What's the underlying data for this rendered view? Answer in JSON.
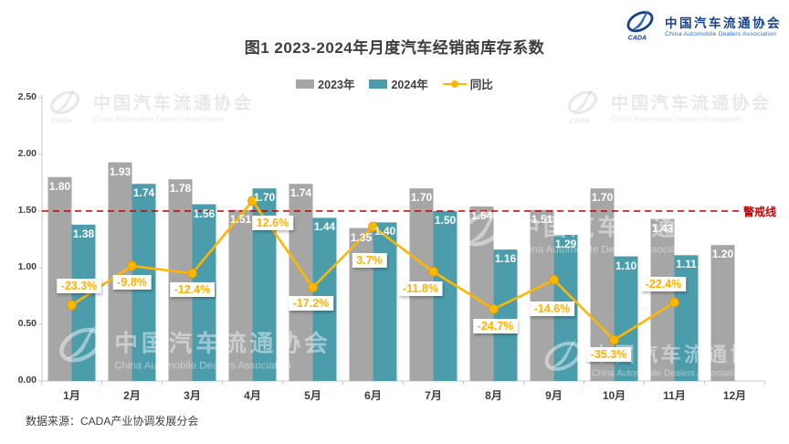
{
  "header": {
    "title": "图1  2023-2024年月度汽车经销商库存系数"
  },
  "brand": {
    "name_cn": "中国汽车流通协会",
    "name_en": "China Automobile Dealers Association",
    "logo_text": "CADA",
    "color_dark": "#16418C",
    "color_light": "#2F6BBF"
  },
  "legend": {
    "items": [
      {
        "label": "2023年",
        "type": "bar",
        "color": "#A6A6A6"
      },
      {
        "label": "2024年",
        "type": "bar",
        "color": "#4C9DAC"
      },
      {
        "label": "同比",
        "type": "line",
        "color": "#FEB700"
      }
    ]
  },
  "chart_data": {
    "type": "bar+line combo",
    "title": "图1  2023-2024年月度汽车经销商库存系数",
    "categories": [
      "1月",
      "2月",
      "3月",
      "4月",
      "5月",
      "6月",
      "7月",
      "8月",
      "9月",
      "10月",
      "11月",
      "12月"
    ],
    "series": [
      {
        "name": "2023年",
        "type": "bar",
        "color": "#A6A6A6",
        "values": [
          1.8,
          1.93,
          1.78,
          1.51,
          1.74,
          1.35,
          1.7,
          1.54,
          1.51,
          1.7,
          1.43,
          1.2
        ]
      },
      {
        "name": "2024年",
        "type": "bar",
        "color": "#4C9DAC",
        "values": [
          1.38,
          1.74,
          1.56,
          1.7,
          1.44,
          1.4,
          1.5,
          1.16,
          1.29,
          1.1,
          1.11,
          null
        ]
      },
      {
        "name": "同比",
        "type": "line",
        "color": "#FEB700",
        "unit": "%",
        "values": [
          -23.3,
          -9.8,
          -12.4,
          12.6,
          -17.2,
          3.7,
          -11.8,
          -24.7,
          -14.6,
          -35.3,
          -22.4,
          null
        ]
      }
    ],
    "y_axis": {
      "min": 0,
      "max": 2.5,
      "step": 0.5,
      "tick_labels": [
        "0.00",
        "0.50",
        "1.00",
        "1.50",
        "2.00",
        "2.50"
      ]
    },
    "warning_line": {
      "value": 1.5,
      "label": "警戒线",
      "color": "#C00000",
      "style": "dashed"
    },
    "legend_position": "top-center",
    "grid": "off",
    "value_label_color": "#FFFFFF",
    "yoy_label_color": "#FFB000"
  },
  "footer": {
    "source": "数据来源：CADA产业协调发展分会"
  }
}
